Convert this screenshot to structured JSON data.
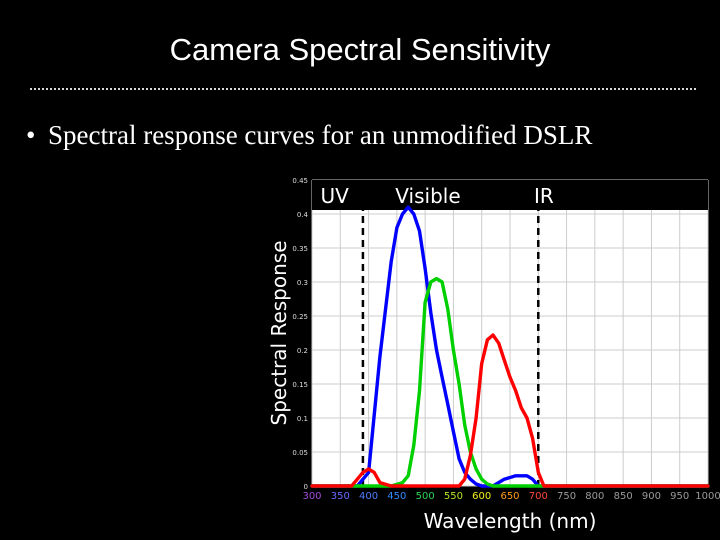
{
  "slide": {
    "title": "Camera Spectral Sensitivity",
    "bullet_symbol": "•",
    "bullet_text": "Spectral response curves for an unmodified DSLR"
  },
  "chart_data": {
    "type": "line",
    "xlabel": "Wavelength (nm)",
    "ylabel": "Spectral Response",
    "xlim": [
      300,
      1000
    ],
    "ylim": [
      0,
      0.45
    ],
    "x_ticks": [
      300,
      350,
      400,
      450,
      500,
      550,
      600,
      650,
      700,
      750,
      800,
      850,
      900,
      950,
      1000
    ],
    "x_tick_colors": [
      "#a24bd6",
      "#6b6bff",
      "#4f7dff",
      "#2f8cff",
      "#2fd34f",
      "#b3e626",
      "#f2ef1b",
      "#ff9d1e",
      "#ff4a3a",
      "#9a9a9a",
      "#9a9a9a",
      "#9a9a9a",
      "#9a9a9a",
      "#9a9a9a",
      "#9a9a9a"
    ],
    "y_ticks": [
      "0",
      "0.05",
      "0.1",
      "0.15",
      "0.2",
      "0.25",
      "0.3",
      "0.35",
      "0.4",
      "0.45"
    ],
    "y_tick_values": [
      0,
      0.05,
      0.1,
      0.15,
      0.2,
      0.25,
      0.3,
      0.35,
      0.4,
      0.45
    ],
    "grid": true,
    "background": "#ffffff",
    "grid_color": "#cccccc",
    "regions": [
      {
        "label": "UV",
        "label_x": 340
      },
      {
        "label": "Visible",
        "label_x": 505
      },
      {
        "label": "IR",
        "label_x": 710
      }
    ],
    "region_boundaries": [
      390,
      700
    ],
    "series": [
      {
        "color": "#0000ff",
        "x": [
          300,
          380,
          400,
          420,
          440,
          450,
          460,
          470,
          480,
          490,
          500,
          510,
          520,
          530,
          540,
          550,
          560,
          570,
          580,
          590,
          600,
          610,
          620,
          640,
          660,
          680,
          690,
          700,
          1000
        ],
        "y": [
          0,
          0,
          0.02,
          0.19,
          0.33,
          0.38,
          0.4,
          0.41,
          0.4,
          0.375,
          0.32,
          0.255,
          0.2,
          0.16,
          0.12,
          0.08,
          0.04,
          0.02,
          0.01,
          0.003,
          0,
          0,
          0,
          0.01,
          0.015,
          0.015,
          0.01,
          0,
          0
        ]
      },
      {
        "color": "#00d000",
        "x": [
          300,
          380,
          440,
          460,
          470,
          480,
          490,
          500,
          510,
          520,
          530,
          540,
          550,
          560,
          570,
          580,
          590,
          600,
          610,
          620,
          640,
          660,
          680,
          700,
          1000
        ],
        "y": [
          0,
          0,
          0,
          0.005,
          0.015,
          0.06,
          0.14,
          0.27,
          0.3,
          0.305,
          0.3,
          0.26,
          0.2,
          0.15,
          0.09,
          0.05,
          0.025,
          0.01,
          0.003,
          0,
          0,
          0,
          0,
          0,
          0
        ]
      },
      {
        "color": "#ff0000",
        "x": [
          300,
          370,
          380,
          390,
          400,
          410,
          420,
          440,
          560,
          570,
          580,
          590,
          600,
          610,
          620,
          630,
          640,
          650,
          660,
          670,
          680,
          690,
          700,
          710,
          1000
        ],
        "y": [
          0,
          0,
          0.01,
          0.02,
          0.025,
          0.02,
          0.005,
          0,
          0,
          0.01,
          0.045,
          0.1,
          0.18,
          0.215,
          0.222,
          0.21,
          0.185,
          0.16,
          0.14,
          0.115,
          0.1,
          0.07,
          0.02,
          0,
          0
        ]
      }
    ]
  }
}
